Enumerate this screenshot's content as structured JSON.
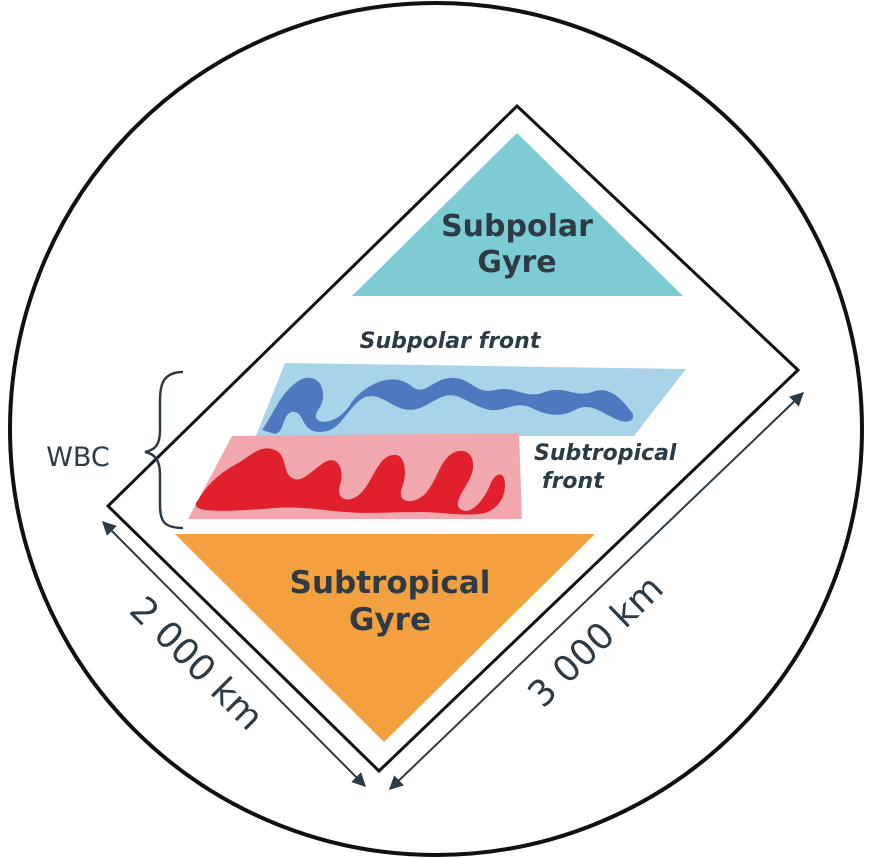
{
  "labels": {
    "subpolar_gyre_line1": "Subpolar",
    "subpolar_gyre_line2": "Gyre",
    "subpolar_front": "Subpolar front",
    "subtropical_front_line1": "Subtropical",
    "subtropical_front_line2": "front",
    "wbc": "WBC",
    "subtropical_gyre_line1": "Subtropical",
    "subtropical_gyre_line2": "Gyre",
    "width_scale": "2 000 km",
    "length_scale": "3 000 km"
  },
  "colors": {
    "subpolar_gyre": "#7dccd4",
    "subpolar_front_band": "#a9d3e8",
    "subpolar_front_meander": "#4f79bf",
    "subtropical_front_band": "#f0a7ad",
    "subtropical_front_meander": "#e0202c",
    "subtropical_gyre": "#f2a040",
    "text": "#2f3b44",
    "outline": "#111111"
  }
}
